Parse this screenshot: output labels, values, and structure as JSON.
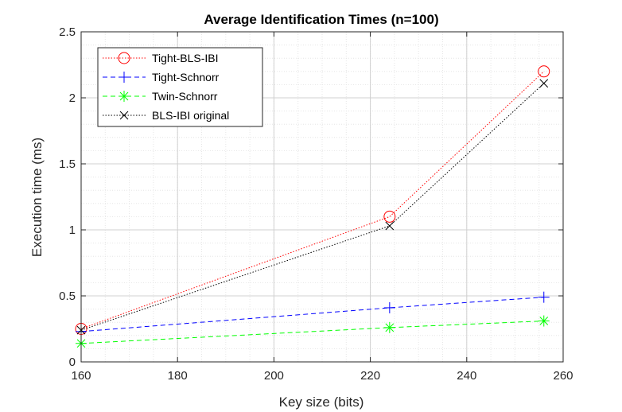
{
  "chart_data": {
    "type": "line",
    "title": "Average Identification Times (n=100)",
    "xlabel": "Key size (bits)",
    "ylabel": "Execution time (ms)",
    "xlim": [
      160,
      260
    ],
    "ylim": [
      0,
      2.5
    ],
    "xticks": [
      160,
      180,
      200,
      220,
      240,
      260
    ],
    "yticks": [
      0,
      0.5,
      1,
      1.5,
      2,
      2.5
    ],
    "ytick_labels": [
      "0",
      "0.5",
      "1",
      "1.5",
      "2",
      "2.5"
    ],
    "grid": true,
    "minor_grid": true,
    "legend_position": "top-left",
    "x": [
      160,
      224,
      256
    ],
    "series": [
      {
        "name": "Tight-BLS-IBI",
        "values": [
          0.25,
          1.1,
          2.2
        ],
        "color": "#ff0000",
        "dash": "dotted",
        "marker": "circle"
      },
      {
        "name": "Tight-Schnorr",
        "values": [
          0.23,
          0.41,
          0.49
        ],
        "color": "#0000ff",
        "dash": "dashed",
        "marker": "plus"
      },
      {
        "name": "Twin-Schnorr",
        "values": [
          0.14,
          0.26,
          0.31
        ],
        "color": "#00ff00",
        "dash": "dashed",
        "marker": "asterisk"
      },
      {
        "name": "BLS-IBI original",
        "values": [
          0.24,
          1.03,
          2.11
        ],
        "color": "#000000",
        "dash": "dotted",
        "marker": "x"
      }
    ]
  }
}
